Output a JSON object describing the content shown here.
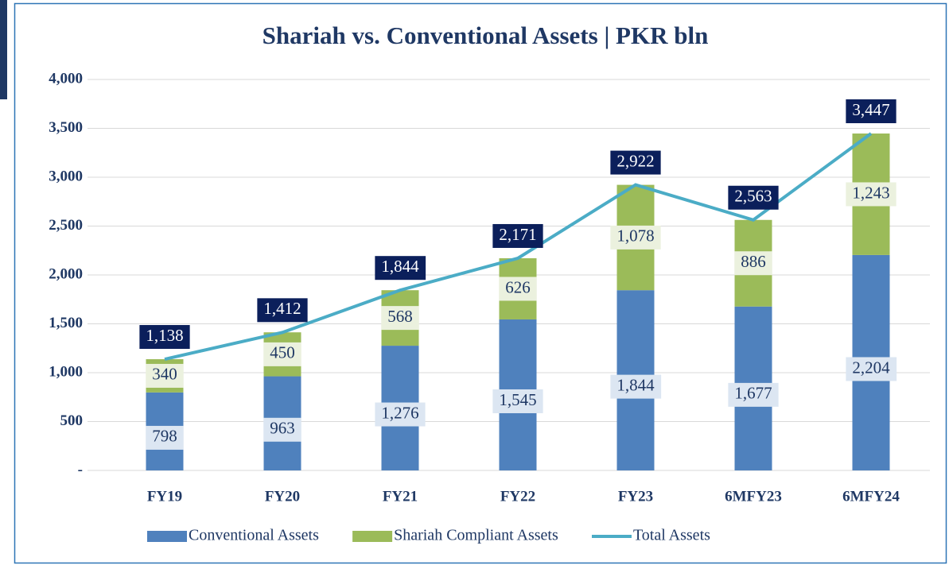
{
  "chart_data": {
    "type": "bar",
    "stacked": true,
    "title": "Shariah vs. Conventional Assets | PKR bln",
    "categories": [
      "FY19",
      "FY20",
      "FY21",
      "FY22",
      "FY23",
      "6MFY23",
      "6MFY24"
    ],
    "series": [
      {
        "name": "Conventional Assets",
        "type": "bar",
        "color": "#4f81bd",
        "label_box": "#dce6f2",
        "label_color": "#1f3864",
        "values": [
          798,
          963,
          1276,
          1545,
          1844,
          1677,
          2204
        ],
        "value_labels": [
          "798",
          "963",
          "1,276",
          "1,545",
          "1,844",
          "1,677",
          "2,204"
        ]
      },
      {
        "name": "Shariah Compliant Assets",
        "type": "bar",
        "color": "#9bbb59",
        "label_box": "#ebf1de",
        "label_color": "#1f3864",
        "values": [
          340,
          450,
          568,
          626,
          1078,
          886,
          1243
        ],
        "value_labels": [
          "340",
          "450",
          "568",
          "626",
          "1,078",
          "886",
          "1,243"
        ]
      },
      {
        "name": "Total Assets",
        "type": "line",
        "color": "#4bacc6",
        "label_box": "#0b1f5b",
        "label_color": "#ffffff",
        "values": [
          1138,
          1412,
          1844,
          2171,
          2922,
          2563,
          3447
        ],
        "value_labels": [
          "1,138",
          "1,412",
          "1,844",
          "2,171",
          "2,922",
          "2,563",
          "3,447"
        ]
      }
    ],
    "ylim": [
      0,
      4000
    ],
    "yticks": [
      {
        "value": 0,
        "label": "-"
      },
      500,
      {
        "value": 1000,
        "label": "1,000"
      },
      {
        "value": 1500,
        "label": "1,500"
      },
      {
        "value": 2000,
        "label": "2,000"
      },
      {
        "value": 2500,
        "label": "2,500"
      },
      {
        "value": 3000,
        "label": "3,000"
      },
      {
        "value": 3500,
        "label": "3,500"
      },
      {
        "value": 4000,
        "label": "4,000"
      }
    ],
    "grid": true,
    "legend": "bottom"
  }
}
